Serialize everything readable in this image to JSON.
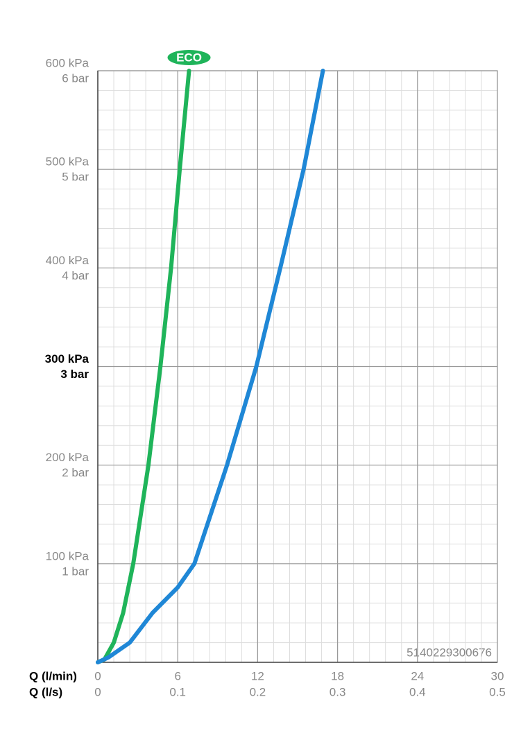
{
  "chart_data": {
    "type": "line",
    "xlabel": "Q (l/min)",
    "x2label": "Q (l/s)",
    "xlim": [
      0,
      30
    ],
    "xticks": [
      0,
      6,
      12,
      18,
      24,
      30
    ],
    "x2ticks": [
      0,
      0.1,
      0.2,
      0.3,
      0.4,
      0.5
    ],
    "ylim": [
      0,
      600
    ],
    "yticks": [
      {
        "value": 100,
        "label": "100 kPa"
      },
      {
        "value": 200,
        "label": "200 kPa"
      },
      {
        "value": 300,
        "label": "300 kPa"
      },
      {
        "value": 400,
        "label": "400 kPa"
      },
      {
        "value": 500,
        "label": "500 kPa"
      },
      {
        "value": 600,
        "label": "600 kPa"
      }
    ],
    "ytick_sublabels": [
      "1 bar",
      "2 bar",
      "3 bar",
      "4 bar",
      "5 bar",
      "6 bar"
    ],
    "emphasized_ytick": 300,
    "x_minor_step": 1.2,
    "y_minor_step": 20,
    "grid": true,
    "annotation": "5140229300676",
    "series": [
      {
        "name": "ECO",
        "color": "#1fb45a",
        "x": [
          0,
          0.5,
          1.2,
          1.9,
          2.66,
          3.8,
          4.7,
          5.5,
          6.15,
          6.85
        ],
        "values": [
          0,
          3,
          20,
          50,
          100,
          200,
          300,
          400,
          500,
          600
        ]
      },
      {
        "color": "#1f87d6",
        "x": [
          0,
          0.8,
          2.4,
          4.1,
          6,
          7.25,
          9.7,
          11.9,
          13.7,
          15.45,
          16.9
        ],
        "values": [
          0,
          5,
          20,
          50,
          76,
          100,
          200,
          300,
          400,
          500,
          600
        ]
      }
    ]
  }
}
